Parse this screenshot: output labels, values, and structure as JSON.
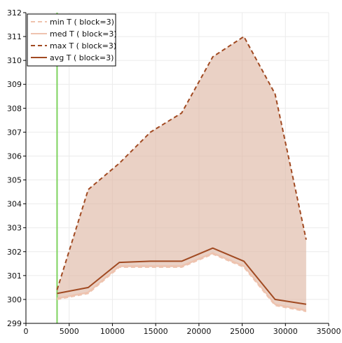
{
  "chart_data": {
    "type": "line",
    "title": "",
    "xlabel": "",
    "ylabel": "",
    "xlim": [
      0,
      35000
    ],
    "ylim": [
      299,
      312
    ],
    "xticks": [
      0,
      5000,
      10000,
      15000,
      20000,
      25000,
      30000,
      35000
    ],
    "yticks": [
      299,
      300,
      301,
      302,
      303,
      304,
      305,
      306,
      307,
      308,
      309,
      310,
      311,
      312
    ],
    "grid": true,
    "legend_position": "top-left",
    "vertical_marker_x": 3600,
    "band_color": "#dfb9a6",
    "x": [
      3600,
      7200,
      10800,
      14400,
      18000,
      21600,
      25200,
      28800,
      32400
    ],
    "series": [
      {
        "name": "min T ( block=3)",
        "style": "dashed",
        "color": "#efc3ae",
        "values": [
          300.0,
          300.25,
          301.35,
          301.35,
          301.35,
          301.9,
          301.35,
          299.75,
          299.5
        ]
      },
      {
        "name": "med T ( block=3)",
        "style": "solid",
        "color": "#eec3af",
        "values": [
          300.05,
          300.3,
          301.4,
          301.4,
          301.4,
          301.95,
          301.4,
          299.8,
          299.55
        ]
      },
      {
        "name": "max T ( block=3)",
        "style": "dashed",
        "color": "#a14a22",
        "values": [
          300.4,
          304.6,
          305.7,
          307.0,
          307.8,
          310.15,
          311.0,
          308.6,
          302.5
        ]
      },
      {
        "name": "avg T ( block=3)",
        "style": "solid",
        "color": "#a14a22",
        "values": [
          300.25,
          300.5,
          301.55,
          301.6,
          301.6,
          302.15,
          301.6,
          300.0,
          299.8
        ]
      }
    ]
  }
}
